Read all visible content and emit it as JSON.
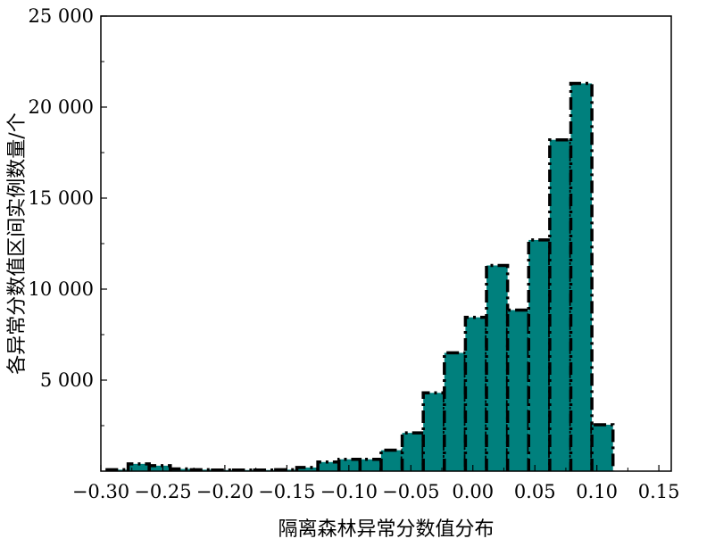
{
  "chart_data": {
    "type": "bar",
    "subtype": "histogram",
    "xlabel": "隔离森林异常分数值分布",
    "ylabel": "各异常分数值区间实例数量/个",
    "xlim": [
      -0.3,
      0.16
    ],
    "ylim": [
      0,
      25000
    ],
    "bin_width": 0.017,
    "bin_start": -0.295,
    "counts": [
      80,
      400,
      300,
      120,
      80,
      60,
      60,
      60,
      80,
      200,
      500,
      650,
      650,
      1150,
      2100,
      4300,
      6500,
      8450,
      11300,
      8850,
      12700,
      18200,
      21300,
      2550
    ],
    "x_ticks": [
      -0.3,
      -0.25,
      -0.2,
      -0.15,
      -0.1,
      -0.05,
      0.0,
      0.05,
      0.1,
      0.15
    ],
    "x_tick_labels": [
      "−0.30",
      "−0.25",
      "−0.20",
      "−0.15",
      "−0.10",
      "−0.05",
      "0.00",
      "0.05",
      "0.10",
      "0.15"
    ],
    "y_ticks": [
      5000,
      10000,
      15000,
      20000,
      25000
    ],
    "y_tick_labels": [
      "5 000",
      "10 000",
      "15 000",
      "20 000",
      "25 000"
    ],
    "bar_color": "#00807d",
    "edge_color": "#000000",
    "edge_style": "dash-dot",
    "grid": false,
    "legend": "none"
  }
}
